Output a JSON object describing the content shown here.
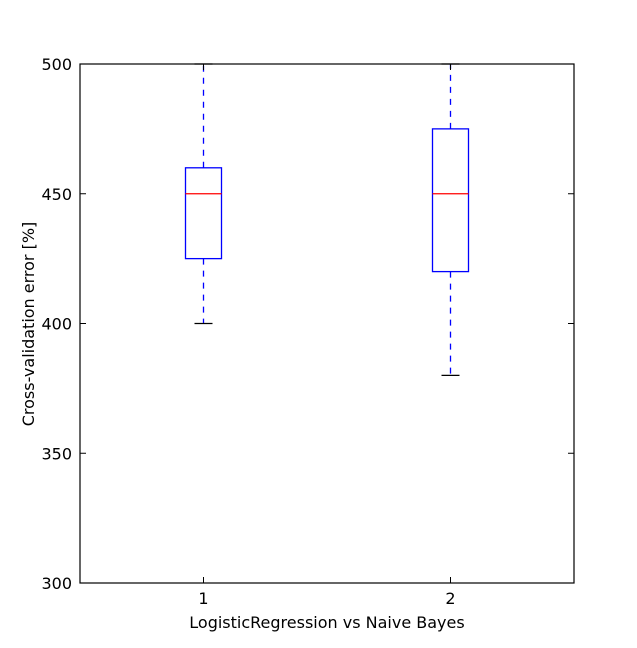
{
  "chart_data": {
    "type": "boxplot",
    "title": "",
    "xlabel": "LogisticRegression vs Naive Bayes",
    "ylabel": "Cross-validation error [%]",
    "ylim": [
      300,
      500
    ],
    "yticks": [
      300,
      350,
      400,
      450,
      500
    ],
    "categories": [
      "1",
      "2"
    ],
    "boxes": [
      {
        "label": "1",
        "whisker_low": 400,
        "q1": 425,
        "median": 450,
        "q3": 460,
        "whisker_high": 500
      },
      {
        "label": "2",
        "whisker_low": 380,
        "q1": 420,
        "median": 450,
        "q3": 475,
        "whisker_high": 500
      }
    ],
    "grid": false,
    "colors": {
      "box": "#0000ff",
      "median": "#ff0000",
      "cap": "#000000",
      "axes": "#000000"
    }
  }
}
